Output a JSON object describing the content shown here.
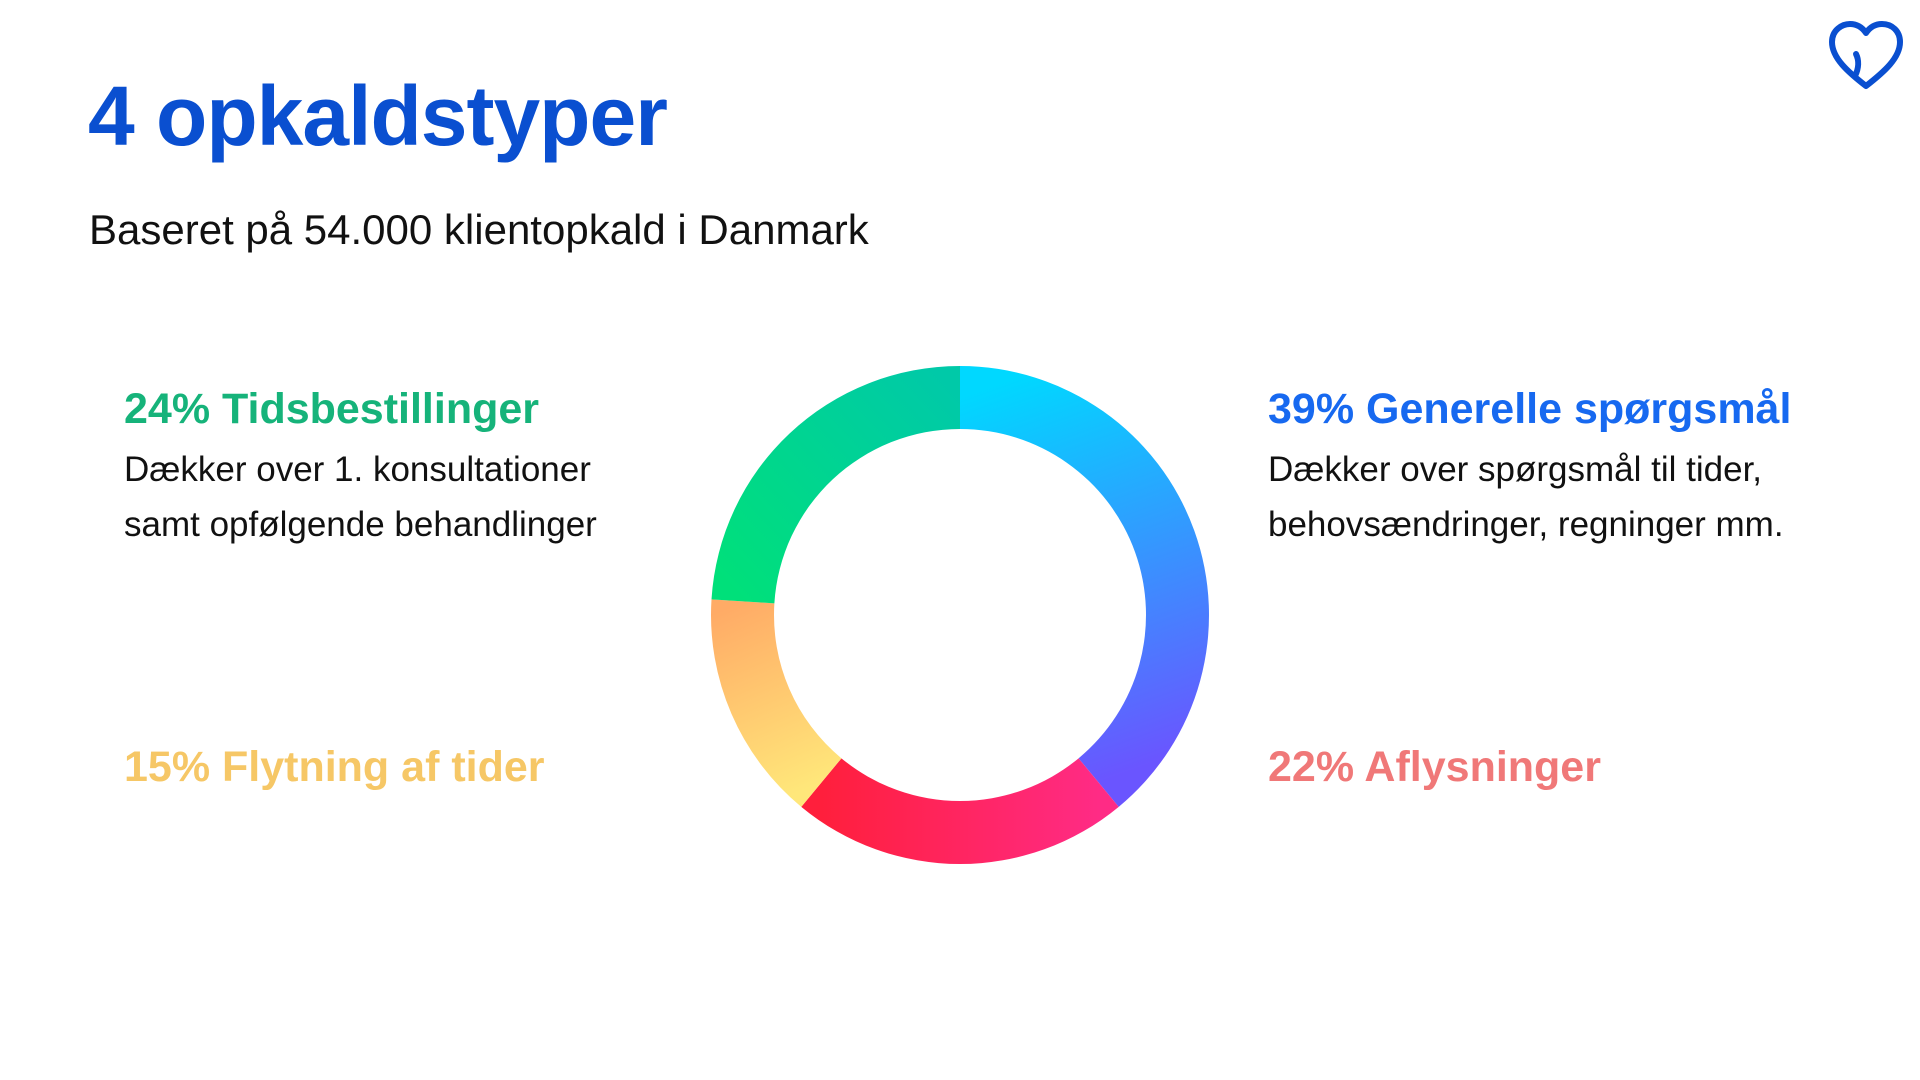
{
  "title": "4 opkaldstyper",
  "subtitle": "Baseret på 54.000 klientopkald i Danmark",
  "logo_icon": "heart-outline-icon",
  "colors": {
    "title": "#0a4fd0",
    "tidsbestillinger": "#16b37a",
    "generelle": "#1769f0",
    "flytning": "#f6c766",
    "aflysninger": "#f07878"
  },
  "blocks": {
    "tl": {
      "heading": "24% Tidsbestillinger",
      "desc_line1": "Dækker over 1. konsultationer",
      "desc_line2": "samt opfølgende behandlinger"
    },
    "tr": {
      "heading": "39% Generelle spørgsmål",
      "desc_line1": "Dækker over spørgsmål til tider,",
      "desc_line2": "behovsændringer, regninger mm."
    },
    "bl": {
      "heading": "15% Flytning af tider"
    },
    "br": {
      "heading": "22% Aflysninger"
    }
  },
  "chart_data": {
    "type": "pie",
    "donut": true,
    "slices": [
      {
        "label": "Generelle spørgsmål",
        "value": 39,
        "color_start": "#00d8ff",
        "color_end": "#6a55ff"
      },
      {
        "label": "Aflysninger",
        "value": 22,
        "color_start": "#ff2b85",
        "color_end": "#ff1f3c"
      },
      {
        "label": "Flytning af tider",
        "value": 15,
        "color_start": "#ffe77a",
        "color_end": "#ffab66"
      },
      {
        "label": "Tidsbestillinger",
        "value": 24,
        "color_start": "#00e07a",
        "color_end": "#00c9a8"
      }
    ]
  }
}
